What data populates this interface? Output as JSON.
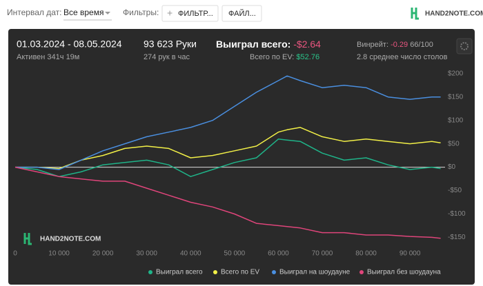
{
  "toolbar": {
    "date_label": "Интервал дат:",
    "date_value": "Все время",
    "filters_label": "Фильтры:",
    "filter_button": "ФИЛЬТР...",
    "file_button": "ФАЙЛ...",
    "logo": "HAND2NOTE.COM"
  },
  "stats": {
    "period": "01.03.2024 - 08.05.2024",
    "active": "Активен 341ч 19м",
    "hands": "93 623 Руки",
    "hands_per_hour": "274 рук в час",
    "won_label": "Выиграл всего:",
    "won_value": "-$2.64",
    "ev_label": "Всего по EV:",
    "ev_value": "$52.76",
    "winrate_label": "Винрейт:",
    "winrate_value": "-0.29",
    "winrate_unit": "66/100",
    "tables": "2.8 среднее число столов"
  },
  "chart_data": {
    "type": "line",
    "watermark": "HAND2NOTE.COM",
    "x": [
      0,
      5000,
      10000,
      15000,
      20000,
      25000,
      30000,
      35000,
      40000,
      45000,
      50000,
      55000,
      60000,
      62000,
      65000,
      70000,
      75000,
      80000,
      85000,
      90000,
      95000,
      97000
    ],
    "series": [
      {
        "name": "Выиграл всего",
        "color": "#1fb489",
        "values": [
          0,
          -5,
          -20,
          -10,
          5,
          10,
          15,
          5,
          -20,
          -5,
          10,
          20,
          60,
          58,
          55,
          30,
          15,
          20,
          5,
          -5,
          0,
          -3
        ]
      },
      {
        "name": "Всего по EV",
        "color": "#f2f047",
        "values": [
          0,
          0,
          -3,
          15,
          25,
          40,
          45,
          40,
          20,
          25,
          35,
          45,
          75,
          80,
          85,
          65,
          55,
          60,
          55,
          50,
          55,
          52
        ]
      },
      {
        "name": "Выиграл на шоудауне",
        "color": "#4a8fe0",
        "values": [
          0,
          0,
          -5,
          15,
          35,
          50,
          65,
          75,
          85,
          100,
          130,
          160,
          185,
          195,
          185,
          170,
          175,
          170,
          150,
          145,
          150,
          150
        ]
      },
      {
        "name": "Выиграл без шоудауна",
        "color": "#e0457b",
        "values": [
          0,
          -10,
          -20,
          -25,
          -30,
          -30,
          -45,
          -60,
          -75,
          -85,
          -100,
          -120,
          -125,
          -127,
          -130,
          -140,
          -140,
          -145,
          -145,
          -148,
          -150,
          -152
        ]
      }
    ],
    "xlim": [
      0,
      98000
    ],
    "xticks": [
      0,
      {
        "value": 10000,
        "label": "10 000"
      },
      {
        "value": 20000,
        "label": "20 000"
      },
      {
        "value": 30000,
        "label": "30 000"
      },
      {
        "value": 40000,
        "label": "40 000"
      },
      {
        "value": 50000,
        "label": "50 000"
      },
      {
        "value": 60000,
        "label": "60 000"
      },
      {
        "value": 70000,
        "label": "70 000"
      },
      {
        "value": 80000,
        "label": "80 000"
      },
      {
        "value": 90000,
        "label": "90 000"
      }
    ],
    "ylim": [
      -170,
      210
    ],
    "yticks": [
      {
        "value": -150,
        "label": "-$150"
      },
      {
        "value": -100,
        "label": "-$100"
      },
      {
        "value": -50,
        "label": "-$50"
      },
      {
        "value": 0,
        "label": "$0"
      },
      {
        "value": 50,
        "label": "$50"
      },
      {
        "value": 100,
        "label": "$100"
      },
      {
        "value": 150,
        "label": "$150"
      },
      {
        "value": 200,
        "label": "$200"
      }
    ],
    "zero_line": true
  }
}
